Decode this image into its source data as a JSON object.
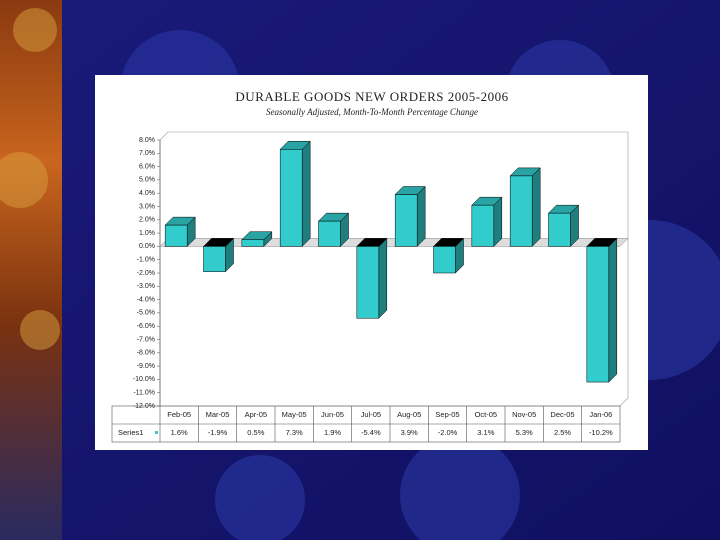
{
  "chart_data": {
    "type": "bar3d",
    "title": "DURABLE GOODS NEW ORDERS 2005-2006",
    "subtitle": "Seasonally Adjusted, Month-To-Month Percentage Change",
    "categories": [
      "Feb-05",
      "Mar-05",
      "Apr-05",
      "May-05",
      "Jun-05",
      "Jul-05",
      "Aug-05",
      "Sep-05",
      "Oct-05",
      "Nov-05",
      "Dec-05",
      "Jan-06"
    ],
    "series": [
      {
        "name": "Series1",
        "color": "#33cccc",
        "values": [
          1.6,
          -1.9,
          0.5,
          7.3,
          1.9,
          -5.4,
          3.9,
          -2.0,
          3.1,
          5.3,
          2.5,
          -10.2
        ],
        "value_labels": [
          "1.6%",
          "-1.9%",
          "0.5%",
          "7.3%",
          "1.9%",
          "-5.4%",
          "3.9%",
          "-2.0%",
          "3.1%",
          "5.3%",
          "2.5%",
          "-10.2%"
        ]
      }
    ],
    "ylim": [
      -12,
      8
    ],
    "yticks": [
      {
        "value": 8,
        "label": "8.0%"
      },
      {
        "value": 7,
        "label": "7.0%"
      },
      {
        "value": 6,
        "label": "6.0%"
      },
      {
        "value": 5,
        "label": "5.0%"
      },
      {
        "value": 4,
        "label": "4.0%"
      },
      {
        "value": 3,
        "label": "3.0%"
      },
      {
        "value": 2,
        "label": "2.0%"
      },
      {
        "value": 1,
        "label": "1.0%"
      },
      {
        "value": 0,
        "label": "0.0%"
      },
      {
        "value": -1,
        "label": "-1.0%"
      },
      {
        "value": -2,
        "label": "-2.0%"
      },
      {
        "value": -3,
        "label": "-3.0%"
      },
      {
        "value": -4,
        "label": "-4.0%"
      },
      {
        "value": -5,
        "label": "-5.0%"
      },
      {
        "value": -6,
        "label": "-6.0%"
      },
      {
        "value": -7,
        "label": "-7.0%"
      },
      {
        "value": -8,
        "label": "-8.0%"
      },
      {
        "value": -9,
        "label": "-9.0%"
      },
      {
        "value": -10,
        "label": "-10.0%"
      },
      {
        "value": -11,
        "label": "-11.0%"
      },
      {
        "value": -12,
        "label": "-12.0%"
      }
    ],
    "data_table": true
  }
}
